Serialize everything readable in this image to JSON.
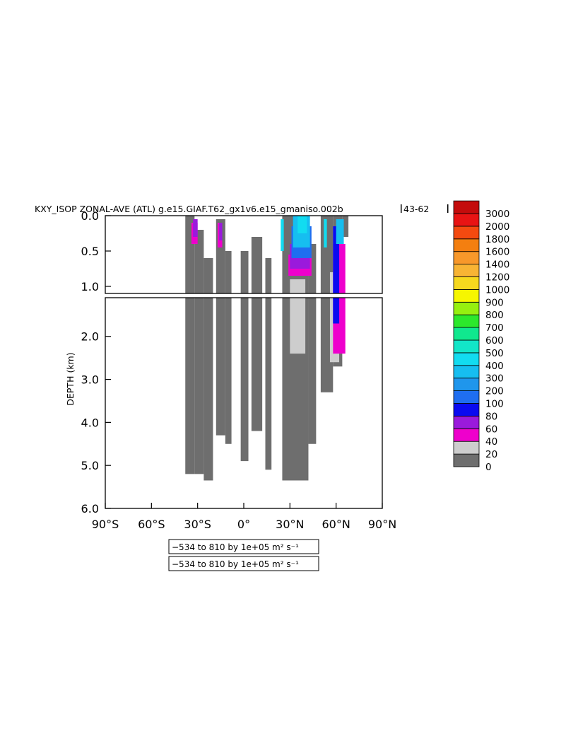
{
  "chart_data": {
    "type": "heatmap",
    "title": "KXY_ISOP ZONAL-AVE (ATL) g.e15.GIAF.T62_gx1v6.e15_gmaniso.002b",
    "title_years": "43-62",
    "ylabel": "DEPTH (km)",
    "x_axis": {
      "range": [
        -90,
        90
      ],
      "ticks": [
        -90,
        -60,
        -30,
        0,
        30,
        60,
        90
      ],
      "tick_labels": [
        "90°S",
        "60°S",
        "30°S",
        "0°",
        "30°N",
        "60°N",
        "90°N"
      ]
    },
    "y_axis_upper": {
      "range": [
        0,
        1.1
      ],
      "ticks": [
        0,
        0.5,
        1.0
      ],
      "tick_labels": [
        "0.0",
        "0.5",
        "1.0"
      ]
    },
    "y_axis_lower": {
      "range": [
        1.1,
        6.0
      ],
      "ticks": [
        2.0,
        3.0,
        4.0,
        5.0,
        6.0
      ],
      "tick_labels": [
        "2.0",
        "3.0",
        "4.0",
        "5.0",
        "6.0"
      ]
    },
    "colorbar": {
      "levels": [
        0,
        20,
        40,
        60,
        80,
        100,
        200,
        300,
        400,
        500,
        600,
        700,
        800,
        900,
        1000,
        1200,
        1400,
        1600,
        1800,
        2000,
        3000
      ],
      "labels": [
        "0",
        "20",
        "40",
        "60",
        "80",
        "100",
        "200",
        "300",
        "400",
        "500",
        "600",
        "700",
        "800",
        "900",
        "1000",
        "1200",
        "1400",
        "1600",
        "1800",
        "2000",
        "3000"
      ],
      "colors": [
        "#6e6e6e",
        "#cdcdcd",
        "#ee00cc",
        "#9a1adc",
        "#0a0af0",
        "#1f6ef0",
        "#1f96ec",
        "#16bef0",
        "#12dcf0",
        "#12e6c8",
        "#10e88e",
        "#2ce82c",
        "#96f010",
        "#f6f600",
        "#f6d81e",
        "#f8b434",
        "#f8982a",
        "#f47f10",
        "#f44a10",
        "#e81414",
        "#c40c0c"
      ]
    },
    "range_captions": [
      "−534 to 810 by 1e+05 m² s⁻¹",
      "−534 to 810 by 1e+05 m² s⁻¹"
    ],
    "regions": [
      {
        "color": "#6e6e6e",
        "lat": [
          -38,
          -32
        ],
        "depth": [
          0.0,
          5.2
        ]
      },
      {
        "color": "#6e6e6e",
        "lat": [
          -32,
          -26
        ],
        "depth": [
          0.2,
          5.2
        ]
      },
      {
        "color": "#6e6e6e",
        "lat": [
          -26,
          -20
        ],
        "depth": [
          0.6,
          5.35
        ]
      },
      {
        "color": "#6e6e6e",
        "lat": [
          -18,
          -12
        ],
        "depth": [
          0.05,
          4.3
        ]
      },
      {
        "color": "#6e6e6e",
        "lat": [
          -12,
          -8
        ],
        "depth": [
          0.5,
          4.5
        ]
      },
      {
        "color": "#6e6e6e",
        "lat": [
          -2,
          3
        ],
        "depth": [
          0.5,
          4.9
        ]
      },
      {
        "color": "#6e6e6e",
        "lat": [
          5,
          12
        ],
        "depth": [
          0.3,
          4.2
        ]
      },
      {
        "color": "#6e6e6e",
        "lat": [
          14,
          18
        ],
        "depth": [
          0.6,
          5.1
        ]
      },
      {
        "color": "#6e6e6e",
        "lat": [
          25,
          42
        ],
        "depth": [
          0.0,
          5.35
        ]
      },
      {
        "color": "#6e6e6e",
        "lat": [
          42,
          47
        ],
        "depth": [
          0.4,
          4.5
        ]
      },
      {
        "color": "#6e6e6e",
        "lat": [
          50,
          58
        ],
        "depth": [
          0.0,
          3.3
        ]
      },
      {
        "color": "#6e6e6e",
        "lat": [
          58,
          64
        ],
        "depth": [
          0.0,
          2.7
        ]
      },
      {
        "color": "#6e6e6e",
        "lat": [
          64,
          68
        ],
        "depth": [
          0.0,
          0.3
        ]
      },
      {
        "color": "#cdcdcd",
        "lat": [
          30,
          40
        ],
        "depth": [
          0.9,
          2.4
        ]
      },
      {
        "color": "#cdcdcd",
        "lat": [
          56,
          62
        ],
        "depth": [
          0.8,
          2.6
        ]
      },
      {
        "color": "#ee00cc",
        "lat": [
          -34,
          -30
        ],
        "depth": [
          0.1,
          0.4
        ]
      },
      {
        "color": "#ee00cc",
        "lat": [
          -17,
          -14
        ],
        "depth": [
          0.1,
          0.45
        ]
      },
      {
        "color": "#ee00cc",
        "lat": [
          29,
          44
        ],
        "depth": [
          0.55,
          0.85
        ]
      },
      {
        "color": "#ee00cc",
        "lat": [
          58,
          66
        ],
        "depth": [
          0.4,
          2.4
        ]
      },
      {
        "color": "#9a1adc",
        "lat": [
          -33,
          -30
        ],
        "depth": [
          0.05,
          0.3
        ]
      },
      {
        "color": "#9a1adc",
        "lat": [
          -16,
          -14
        ],
        "depth": [
          0.1,
          0.35
        ]
      },
      {
        "color": "#9a1adc",
        "lat": [
          30,
          43
        ],
        "depth": [
          0.4,
          0.75
        ]
      },
      {
        "color": "#0a0af0",
        "lat": [
          58,
          62
        ],
        "depth": [
          0.15,
          1.7
        ]
      },
      {
        "color": "#1f6ef0",
        "lat": [
          31,
          44
        ],
        "depth": [
          0.15,
          0.6
        ]
      },
      {
        "color": "#16bef0",
        "lat": [
          32,
          43
        ],
        "depth": [
          0.0,
          0.45
        ]
      },
      {
        "color": "#12dcf0",
        "lat": [
          35,
          41
        ],
        "depth": [
          0.0,
          0.25
        ]
      },
      {
        "color": "#16bef0",
        "lat": [
          60,
          65
        ],
        "depth": [
          0.05,
          0.4
        ]
      },
      {
        "color": "#12dcf0",
        "lat": [
          52,
          54
        ],
        "depth": [
          0.05,
          0.45
        ]
      },
      {
        "color": "#12dcf0",
        "lat": [
          24,
          26
        ],
        "depth": [
          0.05,
          0.5
        ]
      }
    ]
  }
}
